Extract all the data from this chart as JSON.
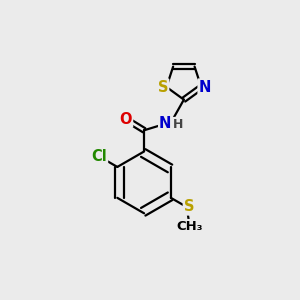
{
  "background_color": "#ebebeb",
  "bond_color": "#000000",
  "atom_colors": {
    "S": "#b8a000",
    "N": "#0000cc",
    "O": "#dd0000",
    "Cl": "#228800",
    "H": "#555555",
    "C": "#000000"
  },
  "font_size": 10.5,
  "fig_size": [
    3.0,
    3.0
  ],
  "dpi": 100,
  "xlim": [
    0,
    10
  ],
  "ylim": [
    0,
    10
  ]
}
